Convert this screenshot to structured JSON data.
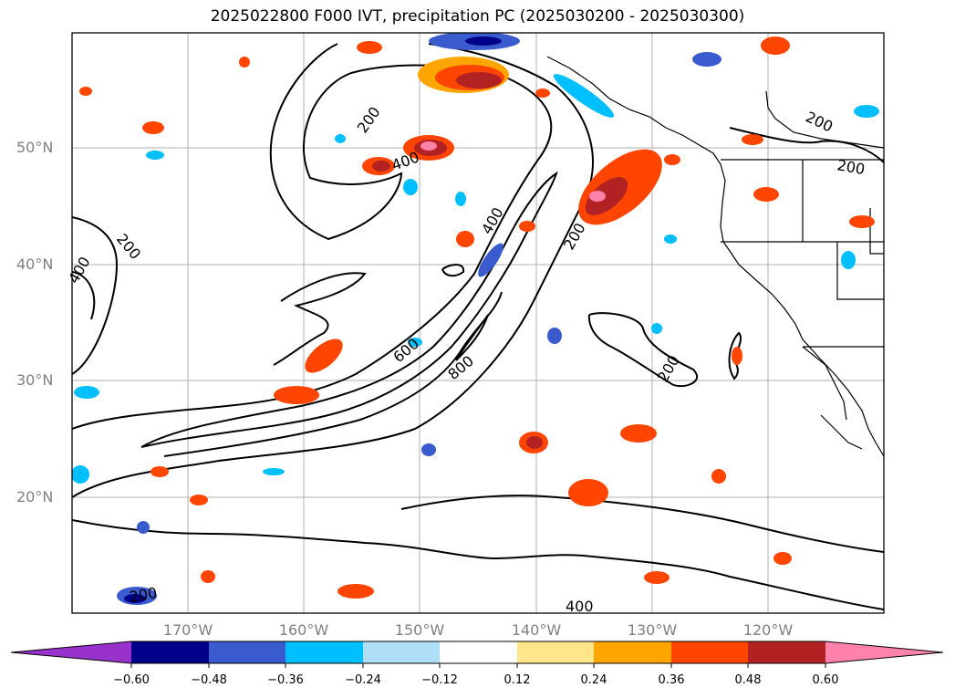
{
  "title": "2025022800 F000 IVT, precipitation PC (2025030200 - 2025030300)",
  "lat_labels": [
    "50°N",
    "40°N",
    "30°N",
    "20°N"
  ],
  "lon_labels": [
    "170°W",
    "160°W",
    "150°W",
    "140°W",
    "130°W",
    "120°W"
  ],
  "contour_labels": [
    "200",
    "400",
    "200",
    "400",
    "200",
    "400",
    "600",
    "800",
    "200",
    "200",
    "200",
    "200",
    "400"
  ],
  "colorbar": {
    "ticks": [
      "−0.60",
      "−0.48",
      "−0.36",
      "−0.24",
      "−0.12",
      "0.12",
      "0.24",
      "0.36",
      "0.48",
      "0.60"
    ],
    "colors": [
      "#9932cc",
      "#00008b",
      "#3a5bcd",
      "#00bfff",
      "#aedff7",
      "#ffffff",
      "#ffe68a",
      "#ffa500",
      "#ff4500",
      "#b22222",
      "#ff82ab"
    ]
  },
  "map_colors": {
    "contour": "#000000",
    "coastline": "#000000",
    "grid": "#b0b0b0"
  }
}
